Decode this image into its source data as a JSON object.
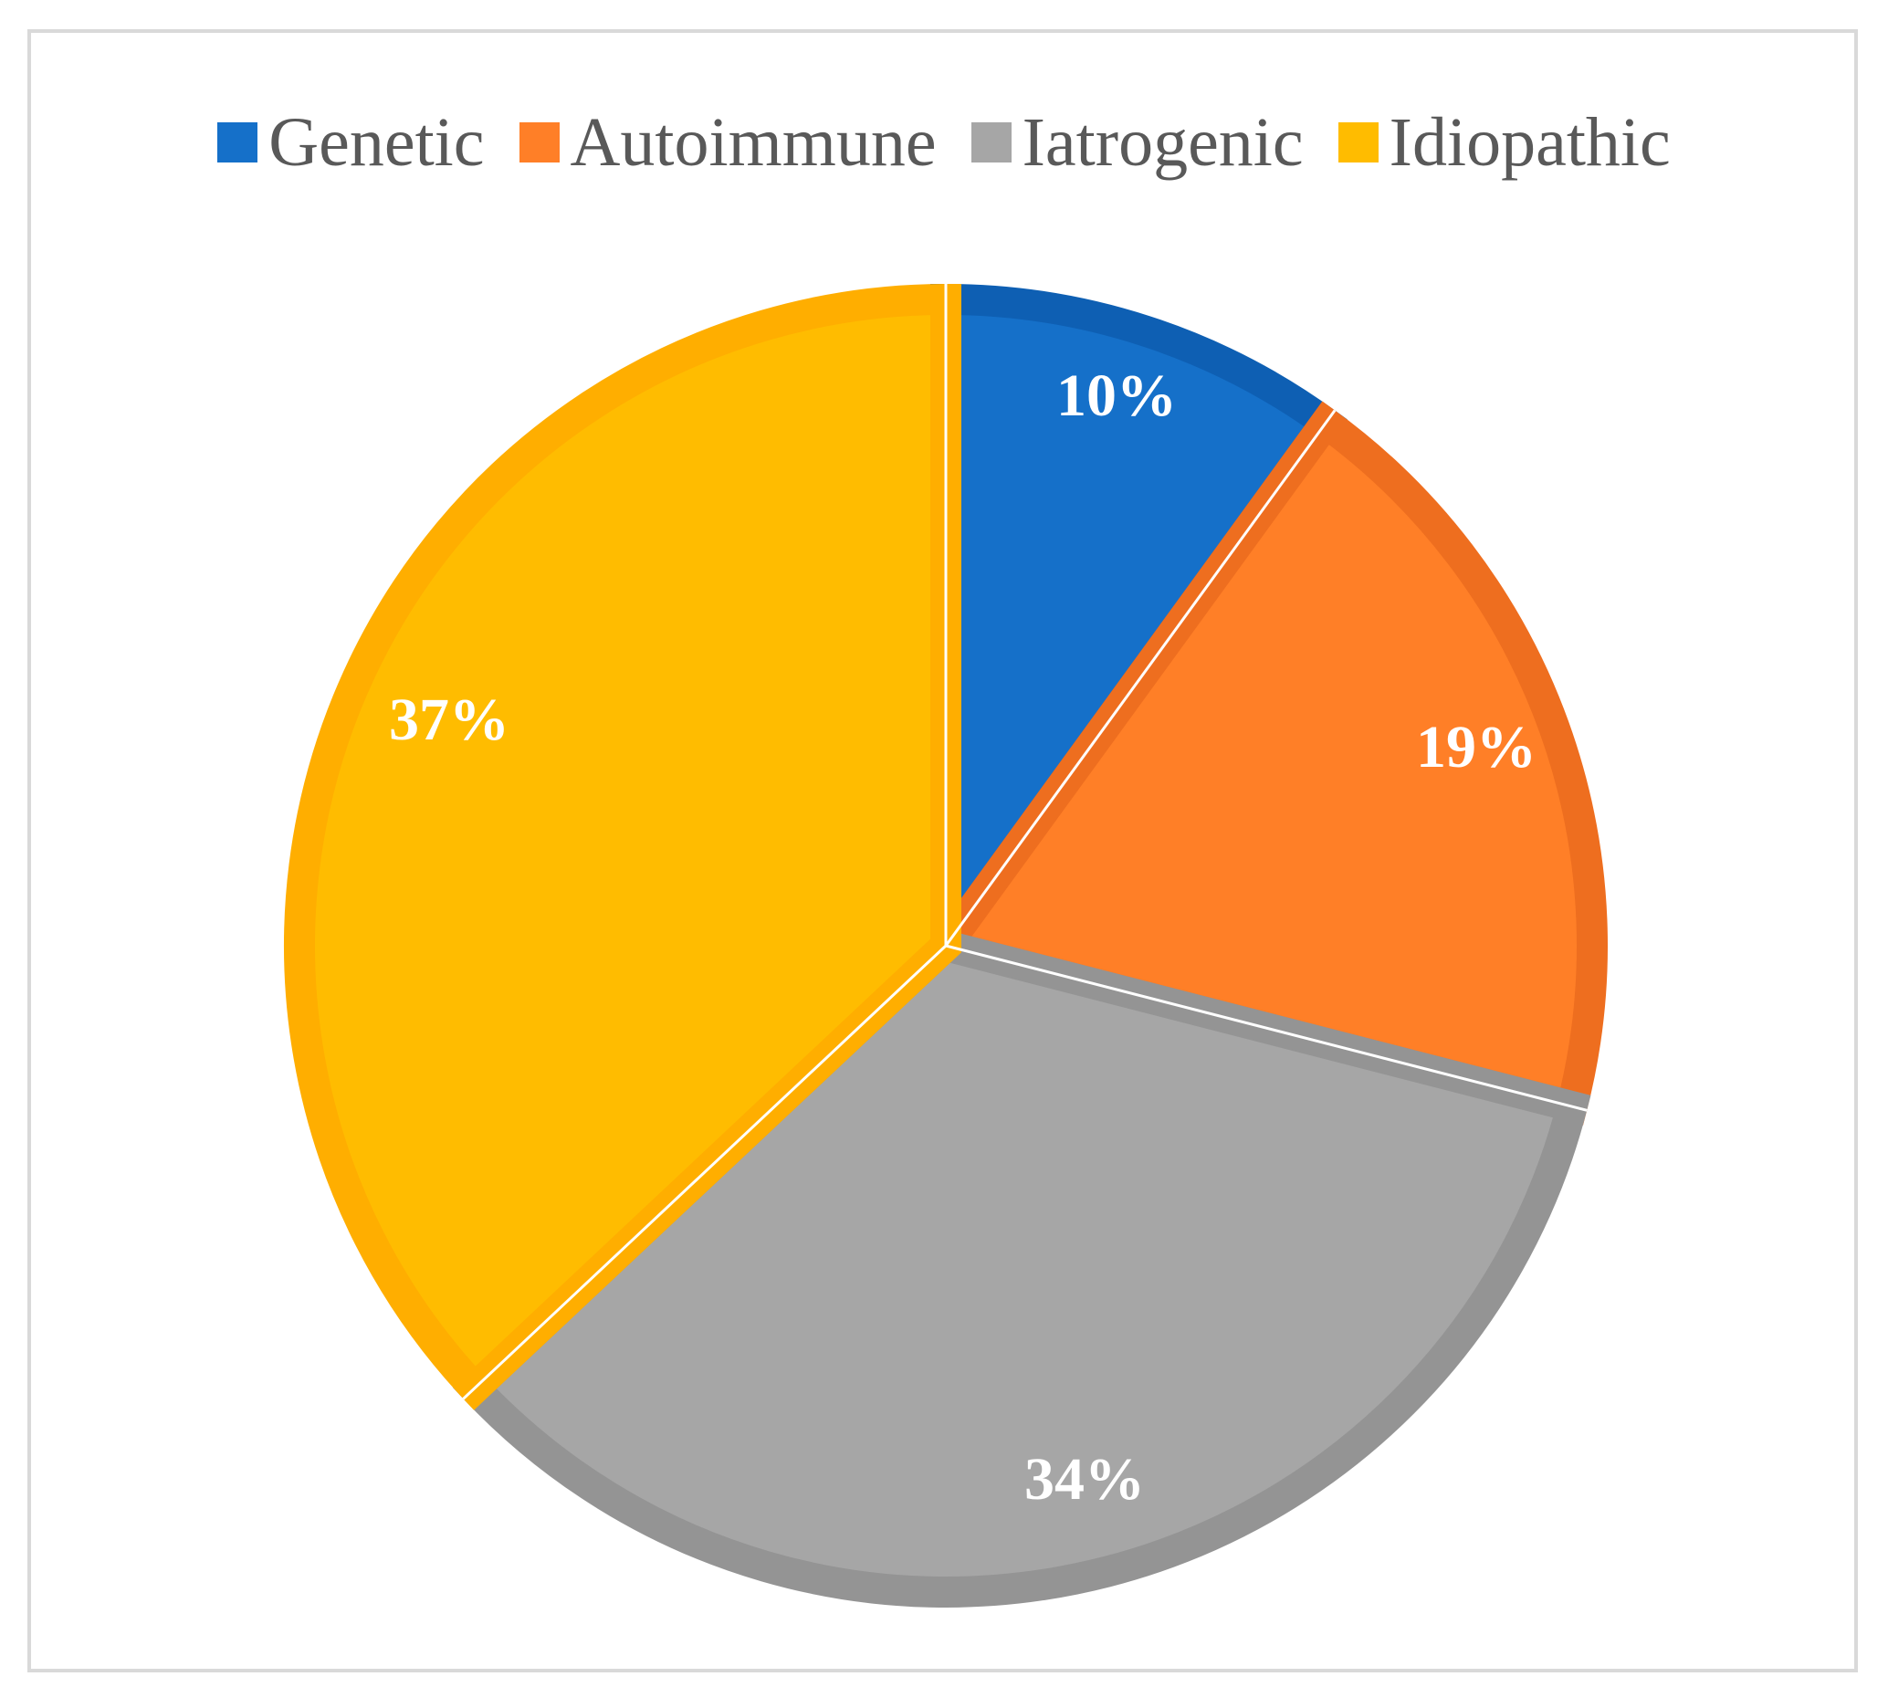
{
  "chart_data": {
    "type": "pie",
    "categories": [
      "Genetic",
      "Autoimmune",
      "Iatrogenic",
      "Idiopathic"
    ],
    "values": [
      10,
      19,
      34,
      37
    ],
    "data_labels": [
      "10%",
      "19%",
      "34%",
      "37%"
    ],
    "colors": [
      "#1570C9",
      "#FF7F27",
      "#A6A6A6",
      "#FFBC00"
    ],
    "border_colors": [
      "#0E5FB3",
      "#EE6E1F",
      "#949494",
      "#FFAE00"
    ],
    "legend_placement": "top",
    "start_angle_deg": 0,
    "direction": "clockwise"
  }
}
